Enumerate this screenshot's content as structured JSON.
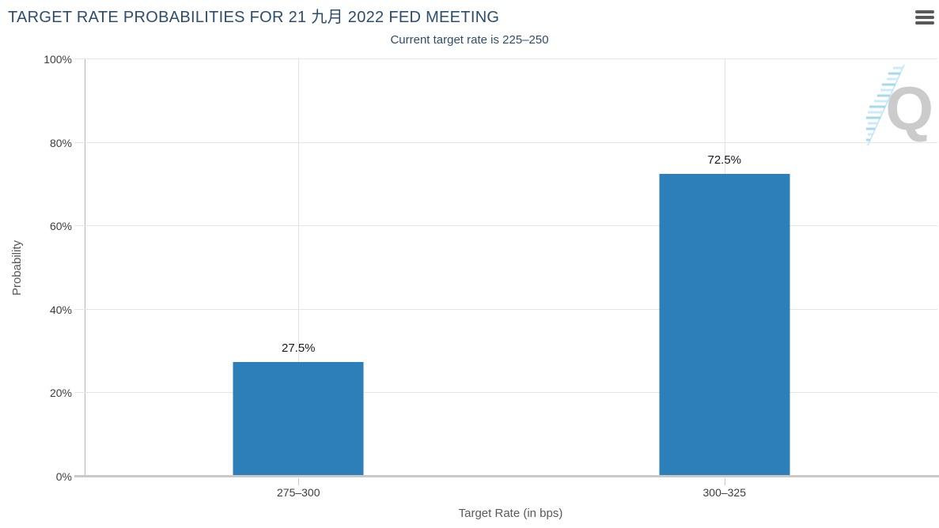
{
  "header": {
    "title": "TARGET RATE PROBABILITIES FOR 21 九月 2022 FED MEETING",
    "menu_icon": "hamburger-icon",
    "watermark_icon": "quikstrike-q-logo"
  },
  "colors": {
    "bar": "#2c7fb8",
    "title_text": "#2d4d6d",
    "axis_title_text": "#595959",
    "tick_text": "#3d3d3d",
    "gridline": "#e5e5e5"
  },
  "chart_data": {
    "type": "bar",
    "title": "TARGET RATE PROBABILITIES FOR 21 九月 2022 FED MEETING",
    "subtitle": "Current target rate is 225–250",
    "categories": [
      "275–300",
      "300–325"
    ],
    "values": [
      27.5,
      72.5
    ],
    "value_labels": [
      "27.5%",
      "72.5%"
    ],
    "xlabel": "Target Rate (in bps)",
    "ylabel": "Probability",
    "ylim": [
      0,
      100
    ],
    "yticks": [
      "0%",
      "20%",
      "40%",
      "60%",
      "80%",
      "100%"
    ],
    "grid": true,
    "legend": "none",
    "bar_color": "#2c7fb8"
  }
}
